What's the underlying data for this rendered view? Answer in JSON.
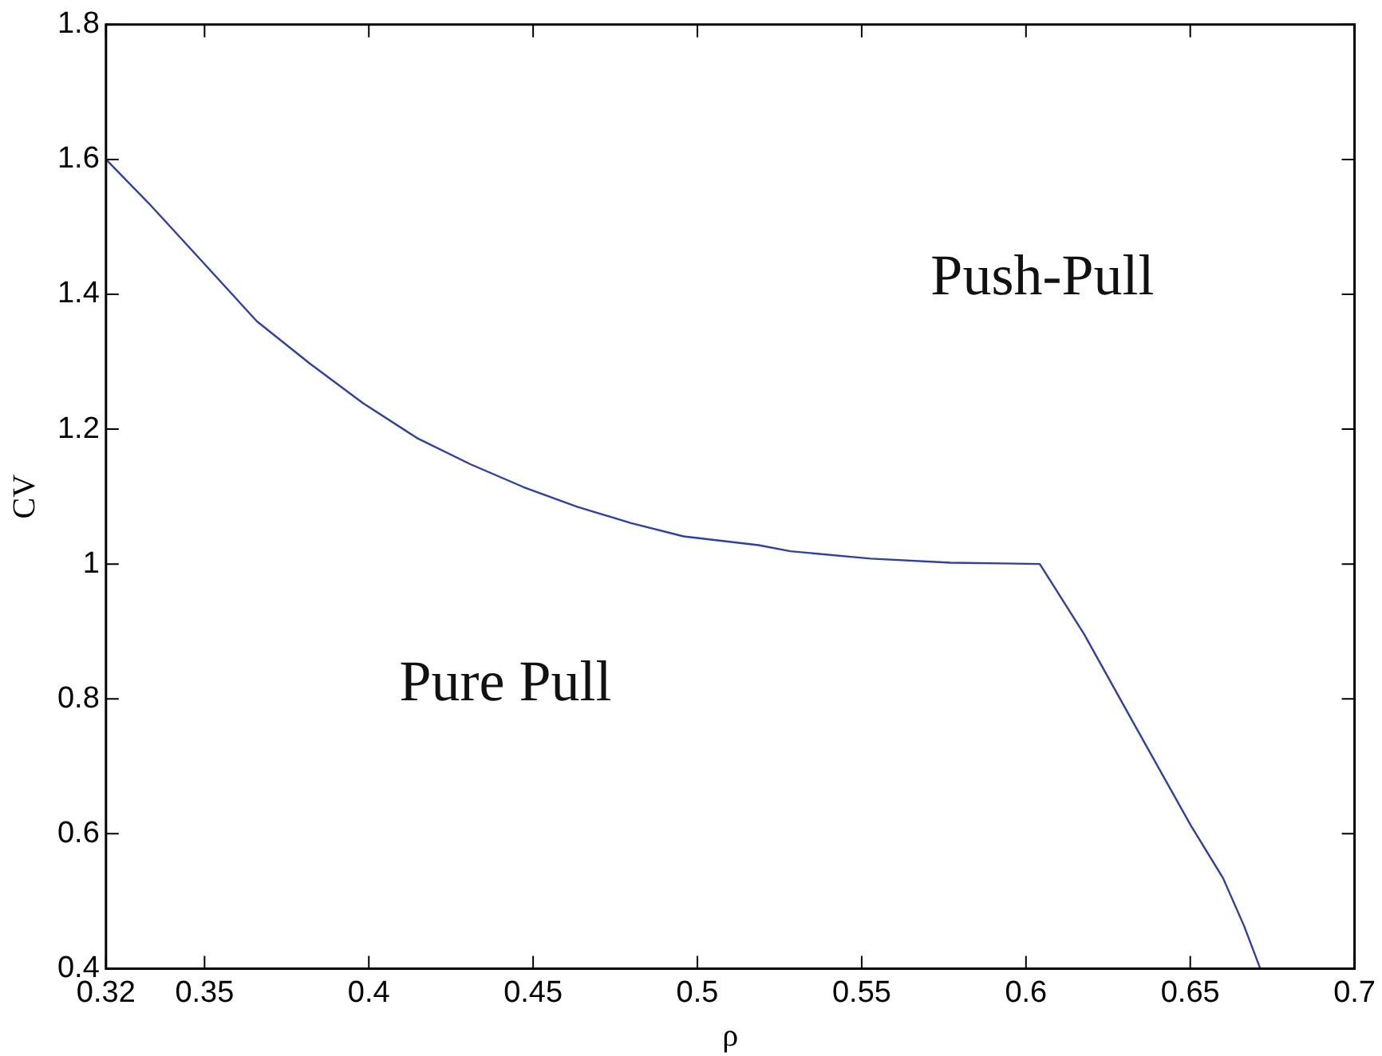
{
  "chart_data": {
    "type": "line",
    "xlabel": "ρ",
    "ylabel": "CV",
    "xlim": [
      0.32,
      0.7
    ],
    "xticks": [
      0.32,
      0.35,
      0.4,
      0.45,
      0.5,
      0.55,
      0.6,
      0.65,
      0.7
    ],
    "ylim": [
      0.4,
      1.8
    ],
    "yticks": [
      0.4,
      0.6,
      0.8,
      1,
      1.2,
      1.4,
      1.6,
      1.8
    ],
    "grid": false,
    "legend": false,
    "marker": "none",
    "line_style": "solid",
    "series": [
      {
        "color": "#2b3fae",
        "x": [
          0.32,
          0.3334,
          0.3496,
          0.3659,
          0.3821,
          0.3984,
          0.4146,
          0.4309,
          0.4471,
          0.4634,
          0.4796,
          0.4958,
          0.5186,
          0.5283,
          0.5527,
          0.5771,
          0.6042,
          0.6177,
          0.6339,
          0.6502,
          0.66,
          0.6664,
          0.6713
        ],
        "values": [
          1.6,
          1.533,
          1.447,
          1.36,
          1.297,
          1.238,
          1.187,
          1.148,
          1.114,
          1.085,
          1.061,
          1.041,
          1.028,
          1.019,
          1.008,
          1.002,
          1.0,
          0.896,
          0.754,
          0.612,
          0.534,
          0.463,
          0.4
        ]
      }
    ],
    "annotations": [
      "Push-Pull",
      "Pure Pull"
    ]
  }
}
